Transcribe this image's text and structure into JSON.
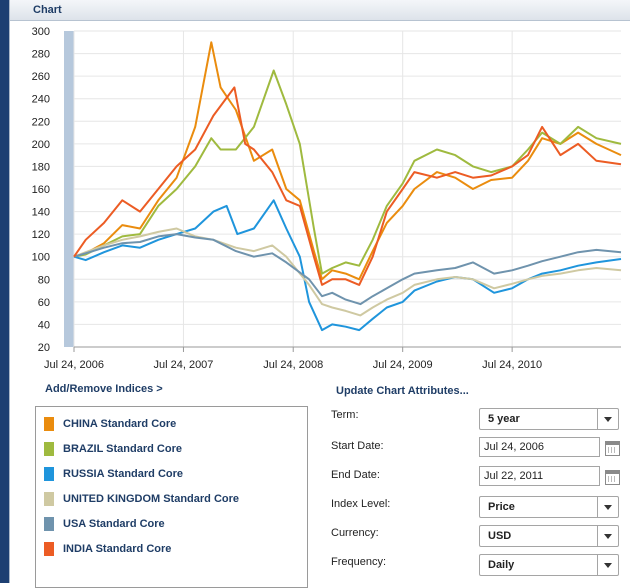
{
  "panel": {
    "title": "Chart"
  },
  "colors": {
    "china": "#ea8c0e",
    "brazil": "#9fba3f",
    "russia": "#1f95dc",
    "uk": "#cfc9a2",
    "usa": "#6f93ad",
    "india": "#ec5c24"
  },
  "chart_data": {
    "type": "line",
    "title": "",
    "xlabel": "",
    "ylabel": "",
    "ylim": [
      20,
      300
    ],
    "yticks": [
      20,
      40,
      60,
      80,
      100,
      120,
      140,
      160,
      180,
      200,
      220,
      240,
      260,
      280,
      300
    ],
    "xticks": [
      "Jul 24, 2006",
      "Jul 24, 2007",
      "Jul 24, 2008",
      "Jul 24, 2009",
      "Jul 24, 2010"
    ],
    "grid": true,
    "x_start": "2006-07-24",
    "x_end": "2011-07-22",
    "series": [
      {
        "name": "CHINA Standard Core",
        "color": "#ea8c0e",
        "x": [
          "2006-07-24",
          "2006-09-01",
          "2006-11-01",
          "2007-01-01",
          "2007-03-01",
          "2007-05-01",
          "2007-07-01",
          "2007-09-01",
          "2007-10-25",
          "2007-11-25",
          "2008-01-15",
          "2008-03-15",
          "2008-05-15",
          "2008-07-01",
          "2008-08-15",
          "2008-10-01",
          "2008-10-28",
          "2008-12-01",
          "2009-01-15",
          "2009-03-01",
          "2009-04-15",
          "2009-06-01",
          "2009-07-24",
          "2009-09-01",
          "2009-11-15",
          "2010-01-15",
          "2010-03-15",
          "2010-05-15",
          "2010-07-24",
          "2010-09-15",
          "2010-11-01",
          "2011-01-01",
          "2011-03-01",
          "2011-05-01",
          "2011-07-22"
        ],
        "y": [
          100,
          103,
          112,
          128,
          125,
          150,
          170,
          215,
          290,
          250,
          230,
          185,
          195,
          160,
          150,
          105,
          80,
          88,
          85,
          80,
          105,
          130,
          145,
          160,
          175,
          170,
          160,
          168,
          170,
          185,
          205,
          200,
          210,
          200,
          190
        ]
      },
      {
        "name": "BRAZIL Standard Core",
        "color": "#9fba3f",
        "x": [
          "2006-07-24",
          "2006-09-01",
          "2006-11-01",
          "2007-01-01",
          "2007-03-01",
          "2007-05-01",
          "2007-07-01",
          "2007-09-01",
          "2007-10-25",
          "2007-11-25",
          "2008-01-15",
          "2008-03-15",
          "2008-05-20",
          "2008-07-01",
          "2008-08-15",
          "2008-10-01",
          "2008-10-28",
          "2008-12-01",
          "2009-01-15",
          "2009-03-01",
          "2009-04-15",
          "2009-06-01",
          "2009-07-24",
          "2009-09-01",
          "2009-11-15",
          "2010-01-15",
          "2010-03-15",
          "2010-05-15",
          "2010-07-24",
          "2010-09-15",
          "2010-11-01",
          "2011-01-01",
          "2011-03-01",
          "2011-05-01",
          "2011-07-22"
        ],
        "y": [
          100,
          102,
          110,
          118,
          120,
          145,
          160,
          180,
          205,
          195,
          195,
          215,
          265,
          235,
          200,
          125,
          85,
          90,
          95,
          92,
          115,
          145,
          165,
          185,
          195,
          190,
          180,
          175,
          180,
          195,
          210,
          200,
          215,
          205,
          200
        ]
      },
      {
        "name": "RUSSIA Standard Core",
        "color": "#1f95dc",
        "x": [
          "2006-07-24",
          "2006-09-01",
          "2006-11-01",
          "2007-01-01",
          "2007-03-01",
          "2007-05-01",
          "2007-07-01",
          "2007-09-01",
          "2007-11-01",
          "2007-12-15",
          "2008-01-20",
          "2008-03-15",
          "2008-05-20",
          "2008-07-01",
          "2008-08-15",
          "2008-09-15",
          "2008-10-28",
          "2008-12-01",
          "2009-01-15",
          "2009-03-01",
          "2009-04-15",
          "2009-06-01",
          "2009-07-24",
          "2009-09-01",
          "2009-11-15",
          "2010-01-15",
          "2010-03-15",
          "2010-05-25",
          "2010-07-24",
          "2010-09-15",
          "2010-11-01",
          "2011-01-01",
          "2011-03-01",
          "2011-05-01",
          "2011-07-22"
        ],
        "y": [
          100,
          97,
          104,
          110,
          108,
          115,
          120,
          125,
          140,
          145,
          120,
          125,
          150,
          125,
          100,
          60,
          35,
          40,
          38,
          35,
          45,
          55,
          60,
          70,
          78,
          82,
          80,
          68,
          72,
          80,
          85,
          88,
          92,
          95,
          98
        ]
      },
      {
        "name": "UNITED KINGDOM Standard Core",
        "color": "#cfc9a2",
        "x": [
          "2006-07-24",
          "2006-09-01",
          "2006-11-01",
          "2007-01-01",
          "2007-03-01",
          "2007-05-01",
          "2007-07-01",
          "2007-09-01",
          "2007-11-01",
          "2008-01-15",
          "2008-03-15",
          "2008-05-15",
          "2008-07-01",
          "2008-09-15",
          "2008-10-28",
          "2008-12-01",
          "2009-01-15",
          "2009-03-05",
          "2009-04-15",
          "2009-06-01",
          "2009-07-24",
          "2009-09-01",
          "2009-11-15",
          "2010-01-15",
          "2010-03-15",
          "2010-05-25",
          "2010-07-24",
          "2010-09-15",
          "2010-11-01",
          "2011-01-01",
          "2011-03-01",
          "2011-05-01",
          "2011-07-22"
        ],
        "y": [
          100,
          104,
          110,
          115,
          118,
          122,
          125,
          118,
          115,
          108,
          105,
          110,
          100,
          75,
          58,
          55,
          52,
          48,
          55,
          62,
          68,
          75,
          80,
          82,
          80,
          72,
          76,
          80,
          83,
          85,
          88,
          90,
          88
        ]
      },
      {
        "name": "USA Standard Core",
        "color": "#6f93ad",
        "x": [
          "2006-07-24",
          "2006-09-01",
          "2006-11-01",
          "2007-01-01",
          "2007-03-01",
          "2007-05-01",
          "2007-07-01",
          "2007-09-01",
          "2007-11-01",
          "2008-01-15",
          "2008-03-15",
          "2008-05-15",
          "2008-07-01",
          "2008-09-15",
          "2008-10-28",
          "2008-12-01",
          "2009-01-15",
          "2009-03-05",
          "2009-04-15",
          "2009-06-01",
          "2009-07-24",
          "2009-09-01",
          "2009-11-15",
          "2010-01-15",
          "2010-03-15",
          "2010-05-25",
          "2010-07-24",
          "2010-09-15",
          "2010-11-01",
          "2011-01-01",
          "2011-03-01",
          "2011-05-01",
          "2011-07-22"
        ],
        "y": [
          100,
          103,
          108,
          112,
          113,
          118,
          120,
          117,
          115,
          105,
          100,
          103,
          95,
          80,
          65,
          68,
          62,
          58,
          65,
          72,
          80,
          85,
          88,
          90,
          95,
          85,
          88,
          92,
          96,
          100,
          104,
          106,
          104
        ]
      },
      {
        "name": "INDIA Standard Core",
        "color": "#ec5c24",
        "x": [
          "2006-07-24",
          "2006-09-01",
          "2006-11-01",
          "2007-01-01",
          "2007-03-01",
          "2007-05-01",
          "2007-07-01",
          "2007-09-01",
          "2007-11-01",
          "2008-01-10",
          "2008-02-15",
          "2008-03-15",
          "2008-05-15",
          "2008-07-01",
          "2008-08-15",
          "2008-10-01",
          "2008-10-28",
          "2008-12-01",
          "2009-01-15",
          "2009-03-01",
          "2009-04-15",
          "2009-06-01",
          "2009-07-24",
          "2009-09-01",
          "2009-11-15",
          "2010-01-15",
          "2010-03-15",
          "2010-05-15",
          "2010-07-24",
          "2010-09-15",
          "2010-11-01",
          "2011-01-01",
          "2011-03-01",
          "2011-05-01",
          "2011-07-22"
        ],
        "y": [
          100,
          115,
          130,
          150,
          140,
          160,
          180,
          195,
          225,
          250,
          200,
          195,
          175,
          150,
          145,
          100,
          75,
          80,
          80,
          75,
          100,
          140,
          160,
          175,
          170,
          175,
          170,
          172,
          180,
          190,
          215,
          190,
          200,
          185,
          182
        ]
      }
    ]
  },
  "indices": {
    "link_label": "Add/Remove Indices >",
    "items": [
      {
        "label": "CHINA Standard Core",
        "color": "#ea8c0e"
      },
      {
        "label": "BRAZIL Standard Core",
        "color": "#9fba3f"
      },
      {
        "label": "RUSSIA Standard Core",
        "color": "#1f95dc"
      },
      {
        "label": "UNITED KINGDOM Standard Core",
        "color": "#cfc9a2"
      },
      {
        "label": "USA Standard Core",
        "color": "#6f93ad"
      },
      {
        "label": "INDIA Standard Core",
        "color": "#ec5c24"
      }
    ]
  },
  "attributes": {
    "heading": "Update Chart Attributes...",
    "term_label": "Term:",
    "term_value": "5 year",
    "start_label": "Start Date:",
    "start_value": "Jul 24, 2006",
    "end_label": "End Date:",
    "end_value": "Jul 22, 2011",
    "level_label": "Index Level:",
    "level_value": "Price",
    "currency_label": "Currency:",
    "currency_value": "USD",
    "frequency_label": "Frequency:",
    "frequency_value": "Daily"
  }
}
